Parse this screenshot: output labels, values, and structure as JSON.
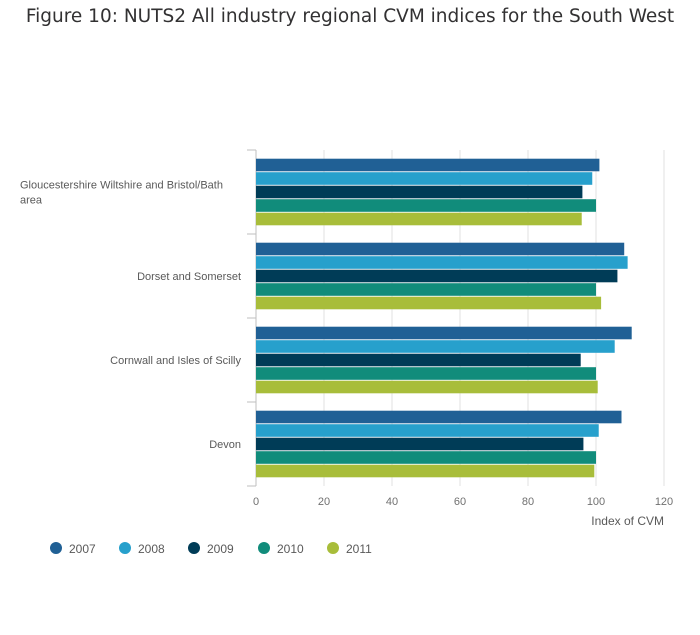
{
  "chart_data": {
    "type": "bar",
    "orientation": "horizontal",
    "title": "Figure 10: NUTS2 All industry regional CVM indices for the South West",
    "xlabel": "Index of CVM",
    "ylabel": "",
    "xlim": [
      0,
      120
    ],
    "xticks": [
      0,
      20,
      40,
      60,
      80,
      100,
      120
    ],
    "grid": true,
    "legend_position": "bottom-left",
    "categories": [
      [
        "Gloucestershire Wiltshire and Bristol/Bath",
        "area"
      ],
      [
        "Dorset and Somerset"
      ],
      [
        "Cornwall and Isles of Scilly"
      ],
      [
        "Devon"
      ]
    ],
    "series": [
      {
        "name": "2007",
        "color": "#206095",
        "values": [
          101.0,
          108.3,
          110.5,
          107.5
        ]
      },
      {
        "name": "2008",
        "color": "#27a0cc",
        "values": [
          98.9,
          109.3,
          105.5,
          100.8
        ]
      },
      {
        "name": "2009",
        "color": "#003c57",
        "values": [
          96.0,
          106.3,
          95.5,
          96.3
        ]
      },
      {
        "name": "2010",
        "color": "#118c7b",
        "values": [
          100.0,
          100.0,
          100.0,
          100.0
        ]
      },
      {
        "name": "2011",
        "color": "#a8bd3a",
        "values": [
          95.8,
          101.5,
          100.5,
          99.5
        ]
      }
    ]
  }
}
